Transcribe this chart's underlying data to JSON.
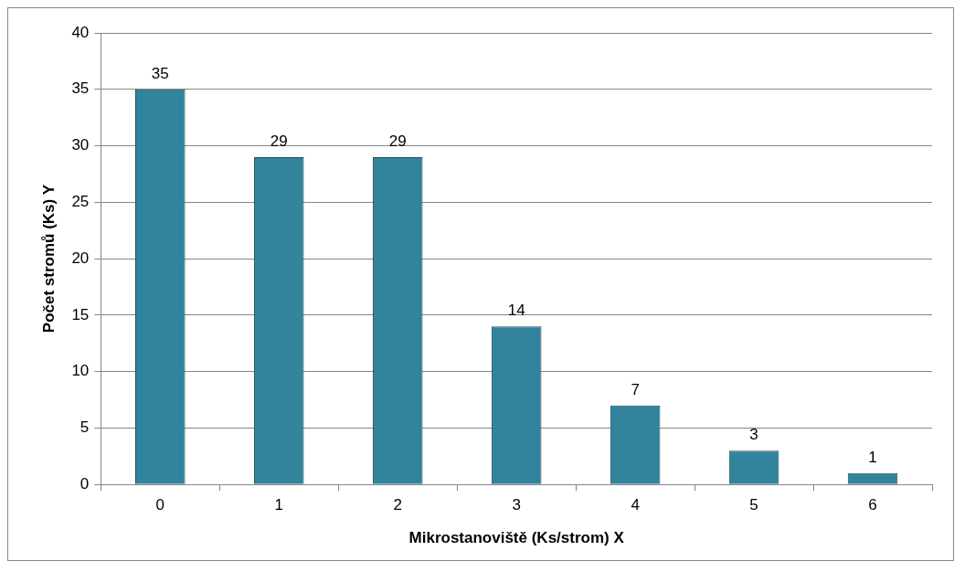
{
  "chart_data": {
    "type": "bar",
    "xlabel": "Mikrostanoviště (Ks/strom) X",
    "ylabel": "Počet stromů (Ks) Y",
    "categories": [
      "0",
      "1",
      "2",
      "3",
      "4",
      "5",
      "6"
    ],
    "values": [
      35,
      29,
      29,
      14,
      7,
      3,
      1
    ],
    "color": "#31849b",
    "ylim": [
      0,
      40
    ],
    "yticks": [
      0,
      5,
      10,
      15,
      20,
      25,
      30,
      35,
      40
    ],
    "grid": "y",
    "data_labels": true,
    "legend": false
  }
}
